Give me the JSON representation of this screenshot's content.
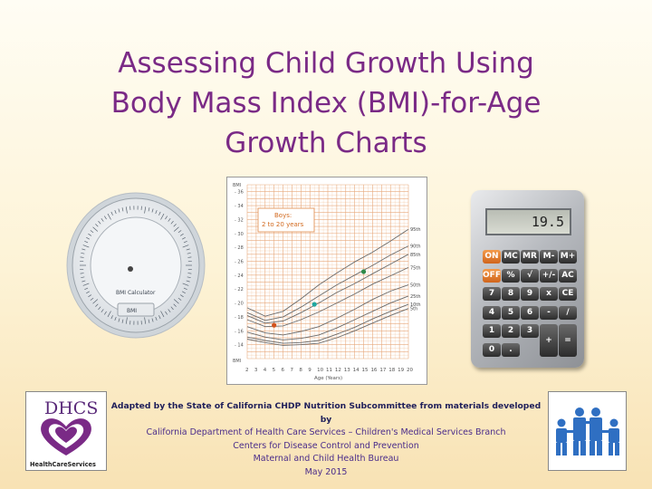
{
  "title": {
    "line1": "Assessing Child Growth Using",
    "line2": "Body Mass Index (BMI)-for-Age",
    "line3": "Growth Charts"
  },
  "bmi_wheel": {
    "center_label": "BMI Calculator",
    "inner_label": "BMI"
  },
  "growth_chart": {
    "y_axis_title": "BMI",
    "x_axis_title": "Age (Years)",
    "legend_line1": "Boys:",
    "legend_line2": "2 to 20 years",
    "y_ticks": [
      "37",
      "36",
      "35",
      "34",
      "33",
      "32",
      "31",
      "30",
      "29",
      "28",
      "27",
      "26",
      "25",
      "24",
      "23",
      "22",
      "21",
      "20",
      "19",
      "18",
      "17",
      "16",
      "15",
      "14",
      "13",
      "12"
    ],
    "x_ticks": [
      "2",
      "3",
      "4",
      "5",
      "6",
      "7",
      "8",
      "9",
      "10",
      "11",
      "12",
      "13",
      "14",
      "15",
      "16",
      "17",
      "18",
      "19",
      "20"
    ],
    "percentiles": [
      "95th",
      "90th",
      "85th",
      "75th",
      "50th",
      "25th",
      "10th",
      "5th"
    ],
    "points": [
      {
        "age": 5,
        "bmi": 16.8,
        "color": "#d2531e"
      },
      {
        "age": 9.5,
        "bmi": 19.8,
        "color": "#1fa7a0"
      },
      {
        "age": 15,
        "bmi": 24.5,
        "color": "#2f8a4a"
      }
    ]
  },
  "calculator": {
    "display": "19.5",
    "keys": [
      [
        "ON",
        "MC",
        "MR",
        "M-",
        "M+"
      ],
      [
        "OFF",
        "%",
        "√",
        "+/-",
        "AC"
      ],
      [
        "7",
        "8",
        "9",
        "x",
        "CE"
      ],
      [
        "4",
        "5",
        "6",
        "-",
        "/"
      ],
      [
        "1",
        "2",
        "3",
        "+",
        "="
      ],
      [
        "0",
        ".",
        "",
        "",
        ""
      ]
    ]
  },
  "dhcs_logo": {
    "text": "DHCS",
    "subtitle": "HealthCareServices",
    "accent": "#7a2a86"
  },
  "credits": {
    "line1": "Adapted by the State of California CHDP Nutrition Subcommittee from materials developed by",
    "line2": "California Department of Health Care Services – Children's Medical Services Branch",
    "line3": "Centers for Disease Control and Prevention",
    "line4": "Maternal and Child Health Bureau",
    "line5": "May 2015"
  },
  "colors": {
    "title": "#7a2a86",
    "family_logo": "#2f6fc2"
  }
}
